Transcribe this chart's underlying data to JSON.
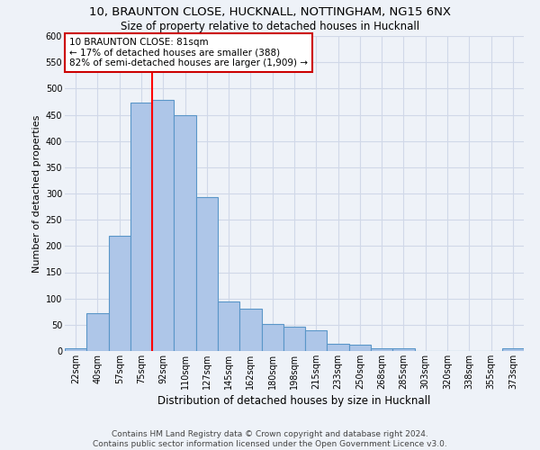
{
  "title1": "10, BRAUNTON CLOSE, HUCKNALL, NOTTINGHAM, NG15 6NX",
  "title2": "Size of property relative to detached houses in Hucknall",
  "xlabel": "Distribution of detached houses by size in Hucknall",
  "ylabel": "Number of detached properties",
  "categories": [
    "22sqm",
    "40sqm",
    "57sqm",
    "75sqm",
    "92sqm",
    "110sqm",
    "127sqm",
    "145sqm",
    "162sqm",
    "180sqm",
    "198sqm",
    "215sqm",
    "233sqm",
    "250sqm",
    "268sqm",
    "285sqm",
    "303sqm",
    "320sqm",
    "338sqm",
    "355sqm",
    "373sqm"
  ],
  "values": [
    5,
    72,
    220,
    473,
    478,
    450,
    293,
    95,
    80,
    52,
    47,
    40,
    13,
    12,
    5,
    5,
    0,
    0,
    0,
    0,
    5
  ],
  "bar_color": "#aec6e8",
  "bar_edgecolor": "#5a96c8",
  "bar_linewidth": 0.8,
  "property_line_x": 3.5,
  "annotation_line1": "10 BRAUNTON CLOSE: 81sqm",
  "annotation_line2": "← 17% of detached houses are smaller (388)",
  "annotation_line3": "82% of semi-detached houses are larger (1,909) →",
  "annotation_box_color": "#ffffff",
  "annotation_box_edgecolor": "#cc0000",
  "grid_color": "#d0d8e8",
  "background_color": "#eef2f8",
  "ylim": [
    0,
    600
  ],
  "yticks": [
    0,
    50,
    100,
    150,
    200,
    250,
    300,
    350,
    400,
    450,
    500,
    550,
    600
  ],
  "footer1": "Contains HM Land Registry data © Crown copyright and database right 2024.",
  "footer2": "Contains public sector information licensed under the Open Government Licence v3.0.",
  "title1_fontsize": 9.5,
  "title2_fontsize": 8.5,
  "xlabel_fontsize": 8.5,
  "ylabel_fontsize": 8,
  "tick_fontsize": 7,
  "footer_fontsize": 6.5,
  "annotation_fontsize": 7.5
}
